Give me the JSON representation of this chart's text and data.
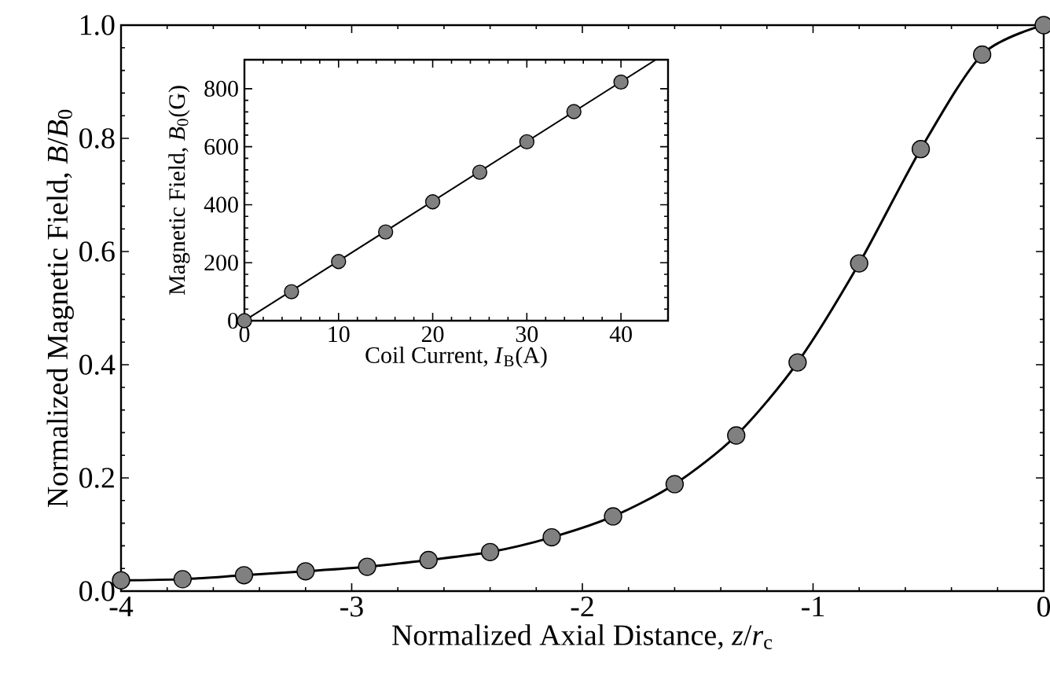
{
  "chart_data": [
    {
      "type": "scatter",
      "xlabel": "Normalized Axial Distance, *z*/*r*$_{c}$",
      "ylabel": "Normalized Magnetic Field, *B*/*B*$_{0}$",
      "x": [
        -4,
        -3.733,
        -3.467,
        -3.2,
        -2.933,
        -2.667,
        -2.4,
        -2.133,
        -1.867,
        -1.6,
        -1.333,
        -1.067,
        -0.8,
        -0.533,
        -0.267,
        0
      ],
      "series": [
        {
          "marker": "circle",
          "color": "#808080",
          "values": [
            0.019,
            0.021,
            0.028,
            0.035,
            0.043,
            0.055,
            0.069,
            0.095,
            0.132,
            0.189,
            0.275,
            0.404,
            0.579,
            0.781,
            0.948,
            1.0
          ]
        },
        {
          "type": "line",
          "marker": "none",
          "line_style": "solid",
          "color": "#000000",
          "values": [
            0.019,
            0.021,
            0.028,
            0.035,
            0.043,
            0.055,
            0.069,
            0.095,
            0.132,
            0.189,
            0.275,
            0.404,
            0.579,
            0.781,
            0.948,
            1.0
          ]
        }
      ],
      "xlim": [
        -4,
        0
      ],
      "ylim": [
        0,
        1.0
      ],
      "xticks": [
        -4,
        -3,
        -2,
        -1,
        0
      ],
      "yticks": [
        {
          "value": 0,
          "label": "0.0"
        },
        {
          "value": 0.2,
          "label": "0.2"
        },
        {
          "value": 0.4,
          "label": "0.4"
        },
        {
          "value": 0.6,
          "label": "0.6"
        },
        {
          "value": 0.8,
          "label": "0.8"
        },
        {
          "value": 1.0,
          "label": "1.0"
        }
      ],
      "grid": false
    },
    {
      "type": "scatter",
      "xlabel": "Coil Current, *I*$_{B}$(A)",
      "ylabel": "Magnetic Field, *B*$_{0}$(G)",
      "series": [
        {
          "marker": "circle",
          "color": "#808080",
          "x": [
            0,
            5,
            10,
            15,
            20,
            25,
            30,
            35,
            40
          ],
          "values": [
            0,
            100,
            204,
            306,
            410,
            512,
            617,
            721,
            823
          ]
        },
        {
          "type": "line",
          "marker": "none",
          "line_style": "solid",
          "color": "#000000",
          "x": [
            0,
            43.7
          ],
          "values": [
            0,
            900
          ]
        }
      ],
      "xlim": [
        0,
        45
      ],
      "ylim": [
        0,
        900
      ],
      "xticks": [
        0,
        10,
        20,
        30,
        40
      ],
      "yticks": [
        0,
        200,
        400,
        600,
        800
      ],
      "grid": false
    }
  ]
}
